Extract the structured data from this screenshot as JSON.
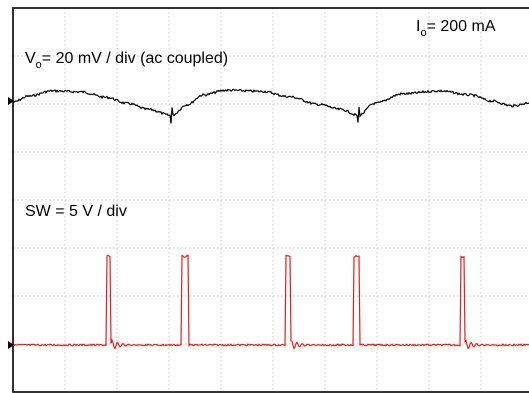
{
  "labels": {
    "current": {
      "symbol": "I",
      "subscript": "o",
      "text": "= 200 mA"
    },
    "ch1": {
      "symbol": "V",
      "subscript": "o",
      "text": "= 20 mV / div (ac coupled)"
    },
    "ch2": {
      "text": "SW = 5 V / div"
    }
  },
  "chart_data": {
    "type": "line",
    "grid": true,
    "grid_divisions": {
      "horizontal": 10,
      "vertical": 8
    },
    "colors": {
      "ch1": "#000000",
      "ch2": "#e0201c"
    },
    "series": [
      {
        "channel": "ch1",
        "description_units": "divisions relative to channel marker (20 mV/div)",
        "x": [
          0,
          0.3,
          0.75,
          1.3,
          1.8,
          2.2,
          2.6,
          3.05,
          3.35,
          3.65,
          4.1,
          4.8,
          5.3,
          5.9,
          6.3,
          6.65,
          6.95,
          7.5,
          8.2,
          8.8,
          9.2,
          9.6,
          10
        ],
        "y": [
          -0.05,
          0.2,
          0.42,
          0.38,
          0.15,
          -0.1,
          -0.35,
          -0.6,
          -0.15,
          0.25,
          0.45,
          0.4,
          0.18,
          -0.15,
          -0.35,
          -0.6,
          -0.1,
          0.3,
          0.42,
          0.25,
          0.0,
          -0.2,
          -0.05
        ]
      },
      {
        "channel": "ch2",
        "description_units": "divisions relative to channel marker (5 V/div)",
        "pulses": [
          {
            "start": 1.8,
            "end": 3.25
          },
          {
            "start": 5.25,
            "end": 6.55
          },
          {
            "start": 8.6,
            "end": 9.95
          }
        ],
        "high_level": 1.85,
        "ringing_amplitude": 0.12
      }
    ]
  }
}
